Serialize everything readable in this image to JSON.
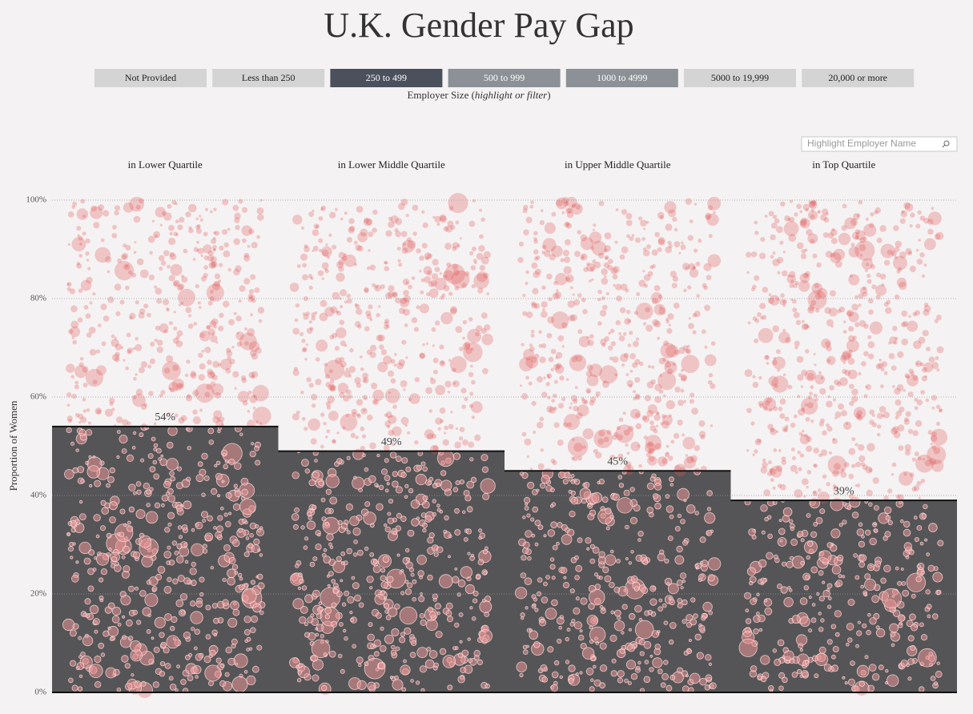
{
  "header": {
    "title": "U.K. Gender Pay Gap",
    "filter_buttons": [
      {
        "label": "Not Provided",
        "color": "#d4d4d4"
      },
      {
        "label": "Less than 250",
        "color": "#d4d4d4"
      },
      {
        "label": "250 to 499",
        "color": "#4a505c"
      },
      {
        "label": "500 to 999",
        "color": "#8b9196"
      },
      {
        "label": "1000 to 4999",
        "color": "#8b9196"
      },
      {
        "label": "5000 to 19,999",
        "color": "#d4d4d4"
      },
      {
        "label": "20,000 or more",
        "color": "#d4d4d4"
      }
    ],
    "filter_caption": [
      "Employer Size (",
      "highlight or filter",
      ")"
    ],
    "search_placeholder": "Highlight Employer Name"
  },
  "chart_data": {
    "type": "bar",
    "categories": [
      "in Lower Quartile",
      "in Lower Middle Quartile",
      "in Upper Middle Quartile",
      "in Top Quartile"
    ],
    "values": [
      54,
      49,
      45,
      39
    ],
    "value_labels": [
      "54%",
      "49%",
      "45%",
      "39%"
    ],
    "color": "#555557",
    "y_label": "Proportion of Women",
    "ylim": [
      0,
      100
    ],
    "yticks": [
      {
        "value": 0,
        "label": "0%"
      },
      {
        "value": 20,
        "label": "20%"
      },
      {
        "value": 40,
        "label": "40%"
      },
      {
        "value": 60,
        "label": "60%"
      },
      {
        "value": 80,
        "label": "80%"
      },
      {
        "value": 100,
        "label": "100%"
      }
    ],
    "grid": true
  }
}
